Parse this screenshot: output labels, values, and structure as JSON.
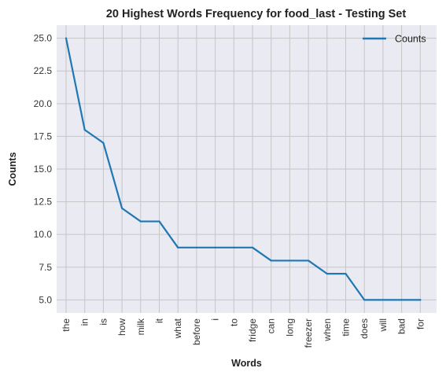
{
  "chart_data": {
    "type": "line",
    "title": "20 Highest Words Frequency for food_last - Testing Set",
    "xlabel": "Words",
    "ylabel": "Counts",
    "categories": [
      "the",
      "in",
      "is",
      "how",
      "milk",
      "it",
      "what",
      "before",
      "i",
      "to",
      "fridge",
      "can",
      "long",
      "freezer",
      "when",
      "time",
      "does",
      "will",
      "bad",
      "for"
    ],
    "series": [
      {
        "name": "Counts",
        "values": [
          25,
          18,
          17,
          12,
          11,
          11,
          9,
          9,
          9,
          9,
          9,
          8,
          8,
          8,
          7,
          7,
          5,
          5,
          5,
          5
        ],
        "color": "#1f77b4"
      }
    ],
    "yticks": [
      5.0,
      7.5,
      10.0,
      12.5,
      15.0,
      17.5,
      20.0,
      22.5,
      25.0
    ],
    "ytick_labels": [
      "5.0",
      "7.5",
      "10.0",
      "12.5",
      "15.0",
      "17.5",
      "20.0",
      "22.5",
      "25.0"
    ],
    "ylim": [
      4.0,
      26.0
    ],
    "grid": true,
    "legend_position": "top-right",
    "background_color": "#eaeaf2",
    "grid_color": "#c6c6c6"
  }
}
